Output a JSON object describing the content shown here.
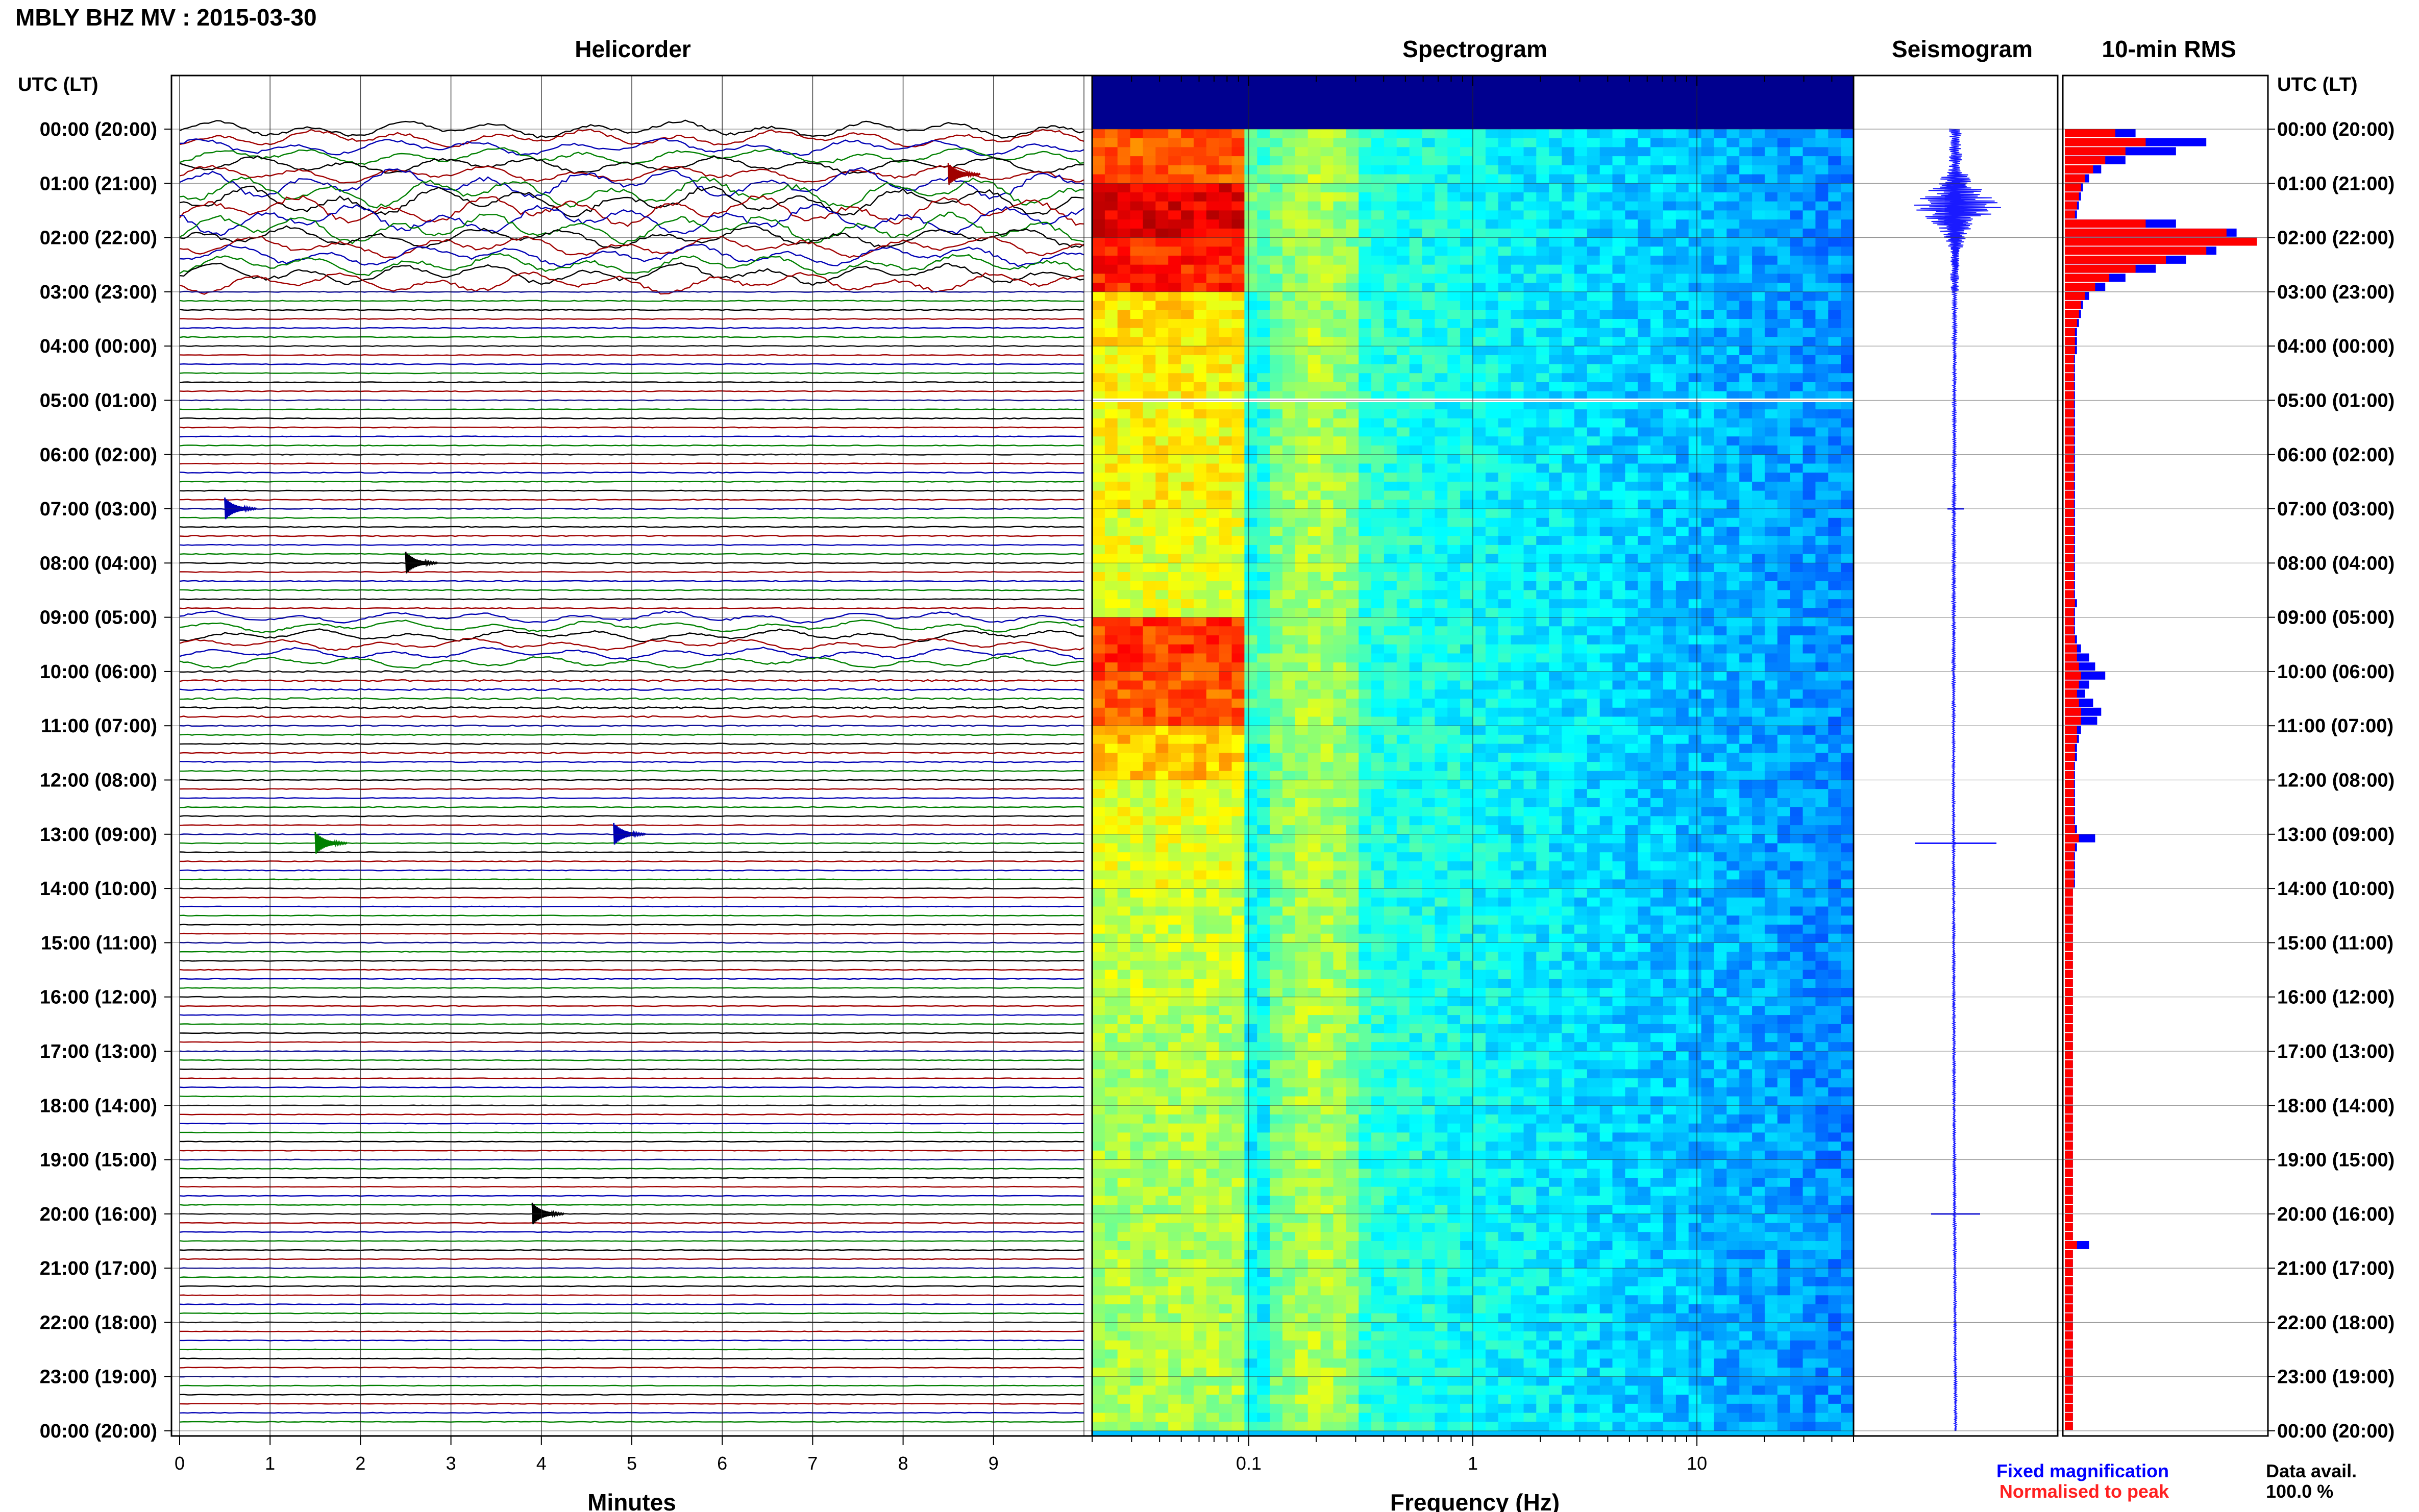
{
  "header": {
    "title": "MBLY BHZ MV : 2015-03-30"
  },
  "panels": {
    "helicorder": "Helicorder",
    "spectrogram": "Spectrogram",
    "seismogram": "Seismogram",
    "rms": "10-min RMS"
  },
  "time_axis": {
    "left_header": "UTC (LT)",
    "right_header": "UTC (LT)",
    "labels": [
      "00:00 (20:00)",
      "01:00 (21:00)",
      "02:00 (22:00)",
      "03:00 (23:00)",
      "04:00 (00:00)",
      "05:00 (01:00)",
      "06:00 (02:00)",
      "07:00 (03:00)",
      "08:00 (04:00)",
      "09:00 (05:00)",
      "10:00 (06:00)",
      "11:00 (07:00)",
      "12:00 (08:00)",
      "13:00 (09:00)",
      "14:00 (10:00)",
      "15:00 (11:00)",
      "16:00 (12:00)",
      "17:00 (13:00)",
      "18:00 (14:00)",
      "19:00 (15:00)",
      "20:00 (16:00)",
      "21:00 (17:00)",
      "22:00 (18:00)",
      "23:00 (19:00)",
      "00:00 (20:00)"
    ]
  },
  "legend": {
    "fixed": "Fixed magnification",
    "normalised": "Normalised to peak",
    "data_avail_label": "Data avail.",
    "data_avail_value": "100.0 %"
  },
  "colors": {
    "fixed": "#0000ff",
    "normalised": "#ff0000",
    "traces": [
      "#000000",
      "#a00000",
      "#0000b4",
      "#008000"
    ]
  },
  "chart_data": [
    {
      "type": "line",
      "title": "Helicorder",
      "xlabel": "Minutes",
      "xticks": [
        "0",
        "1",
        "2",
        "3",
        "4",
        "5",
        "6",
        "7",
        "8",
        "9"
      ],
      "xlim": [
        0,
        10
      ],
      "rows": 144,
      "row_minutes": 10,
      "amplitude_by_hour": [
        1.6,
        2.8,
        2.0,
        0.5,
        0.45,
        0.45,
        0.5,
        0.5,
        0.5,
        1.1,
        1.0,
        0.6,
        0.45,
        0.45,
        0.4,
        0.4,
        0.35,
        0.35,
        0.35,
        0.35,
        0.35,
        0.35,
        0.35,
        0.35
      ],
      "events": [
        {
          "time": "00:50",
          "minute": 8.5,
          "label": ""
        },
        {
          "time": "07:00",
          "minute": 0.5,
          "label": ""
        },
        {
          "time": "08:00",
          "minute": 2.5,
          "label": ""
        },
        {
          "time": "13:00",
          "minute": 4.8,
          "label": ""
        },
        {
          "time": "13:10",
          "minute": 1.5,
          "label": ""
        },
        {
          "time": "20:00",
          "minute": 3.9,
          "label": ""
        }
      ]
    },
    {
      "type": "heatmap",
      "title": "Spectrogram",
      "xlabel": "Frequency (Hz)",
      "xscale": "log",
      "xlim": [
        0.02,
        50
      ],
      "xticks": [
        "0.1",
        "1",
        "10"
      ],
      "data_gap_utc": "05:00",
      "intensity_low_band_by_hour": [
        0.8,
        1.0,
        0.9,
        0.55,
        0.5,
        0.5,
        0.5,
        0.45,
        0.45,
        0.85,
        0.8,
        0.6,
        0.45,
        0.45,
        0.4,
        0.4,
        0.35,
        0.35,
        0.35,
        0.35,
        0.35,
        0.35,
        0.35,
        0.35
      ]
    },
    {
      "type": "line",
      "title": "Seismogram",
      "envelope_by_hour": [
        9,
        15,
        6,
        2.5,
        2,
        2,
        2,
        2,
        2,
        2,
        1.8,
        1.6,
        1.6,
        1.6,
        1.6,
        1.6,
        1.6,
        1.6,
        1.6,
        1.6,
        1.6,
        1.6,
        1.6,
        1.6
      ],
      "spikes": [
        {
          "time": "07:00",
          "amp": 4
        },
        {
          "time": "13:10",
          "amp": 20
        },
        {
          "time": "20:00",
          "amp": 12
        }
      ]
    },
    {
      "type": "bar",
      "title": "10-min RMS",
      "orientation": "horizontal",
      "series": [
        {
          "name": "Fixed magnification",
          "values": [
            0.35,
            0.7,
            0.55,
            0.3,
            0.18,
            0.12,
            0.09,
            0.08,
            0.07,
            0.06,
            0.55,
            0.85,
            0.95,
            0.75,
            0.6,
            0.45,
            0.3,
            0.2,
            0.12,
            0.09,
            0.08,
            0.07,
            0.06,
            0.06,
            0.06,
            0.05,
            0.05,
            0.05,
            0.05,
            0.05,
            0.05,
            0.05,
            0.05,
            0.05,
            0.05,
            0.05,
            0.05,
            0.05,
            0.05,
            0.05,
            0.05,
            0.05,
            0.05,
            0.05,
            0.05,
            0.05,
            0.05,
            0.05,
            0.05,
            0.05,
            0.05,
            0.05,
            0.06,
            0.05,
            0.05,
            0.05,
            0.06,
            0.08,
            0.12,
            0.15,
            0.2,
            0.12,
            0.1,
            0.14,
            0.18,
            0.16,
            0.08,
            0.07,
            0.06,
            0.06,
            0.05,
            0.05,
            0.05,
            0.05,
            0.05,
            0.05,
            0.05,
            0.06,
            0.15,
            0.06,
            0.05,
            0.05,
            0.05,
            0.05,
            0.04,
            0.04,
            0.04,
            0.04,
            0.04,
            0.04,
            0.04,
            0.04,
            0.04,
            0.04,
            0.04,
            0.04,
            0.04,
            0.04,
            0.04,
            0.04,
            0.04,
            0.04,
            0.04,
            0.04,
            0.04,
            0.04,
            0.04,
            0.04,
            0.04,
            0.04,
            0.04,
            0.04,
            0.04,
            0.04,
            0.04,
            0.04,
            0.04,
            0.04,
            0.04,
            0.04,
            0.04,
            0.04,
            0.04,
            0.12,
            0.04,
            0.04,
            0.04,
            0.04,
            0.04,
            0.04,
            0.04,
            0.04,
            0.04,
            0.04,
            0.04,
            0.04,
            0.04,
            0.04,
            0.04,
            0.04,
            0.04,
            0.04,
            0.04,
            0.04
          ]
        },
        {
          "name": "Normalised to peak",
          "values": [
            0.25,
            0.4,
            0.3,
            0.2,
            0.14,
            0.1,
            0.08,
            0.07,
            0.06,
            0.05,
            0.4,
            0.8,
            0.95,
            0.7,
            0.5,
            0.35,
            0.22,
            0.15,
            0.1,
            0.08,
            0.07,
            0.06,
            0.05,
            0.05,
            0.05,
            0.045,
            0.045,
            0.045,
            0.045,
            0.045,
            0.045,
            0.045,
            0.045,
            0.045,
            0.045,
            0.045,
            0.045,
            0.045,
            0.045,
            0.045,
            0.045,
            0.045,
            0.045,
            0.045,
            0.045,
            0.045,
            0.045,
            0.045,
            0.045,
            0.045,
            0.045,
            0.045,
            0.05,
            0.045,
            0.045,
            0.045,
            0.05,
            0.06,
            0.06,
            0.07,
            0.08,
            0.07,
            0.06,
            0.07,
            0.08,
            0.08,
            0.06,
            0.06,
            0.05,
            0.05,
            0.045,
            0.045,
            0.045,
            0.045,
            0.045,
            0.045,
            0.045,
            0.05,
            0.07,
            0.05,
            0.045,
            0.045,
            0.045,
            0.045,
            0.04,
            0.04,
            0.04,
            0.04,
            0.04,
            0.04,
            0.04,
            0.04,
            0.04,
            0.04,
            0.04,
            0.04,
            0.04,
            0.04,
            0.04,
            0.04,
            0.04,
            0.04,
            0.04,
            0.04,
            0.04,
            0.04,
            0.04,
            0.04,
            0.04,
            0.04,
            0.04,
            0.04,
            0.04,
            0.04,
            0.04,
            0.04,
            0.04,
            0.04,
            0.04,
            0.04,
            0.04,
            0.04,
            0.04,
            0.06,
            0.04,
            0.04,
            0.04,
            0.04,
            0.04,
            0.04,
            0.04,
            0.04,
            0.04,
            0.04,
            0.04,
            0.04,
            0.04,
            0.04,
            0.04,
            0.04,
            0.04,
            0.04,
            0.04,
            0.04
          ]
        }
      ]
    }
  ]
}
